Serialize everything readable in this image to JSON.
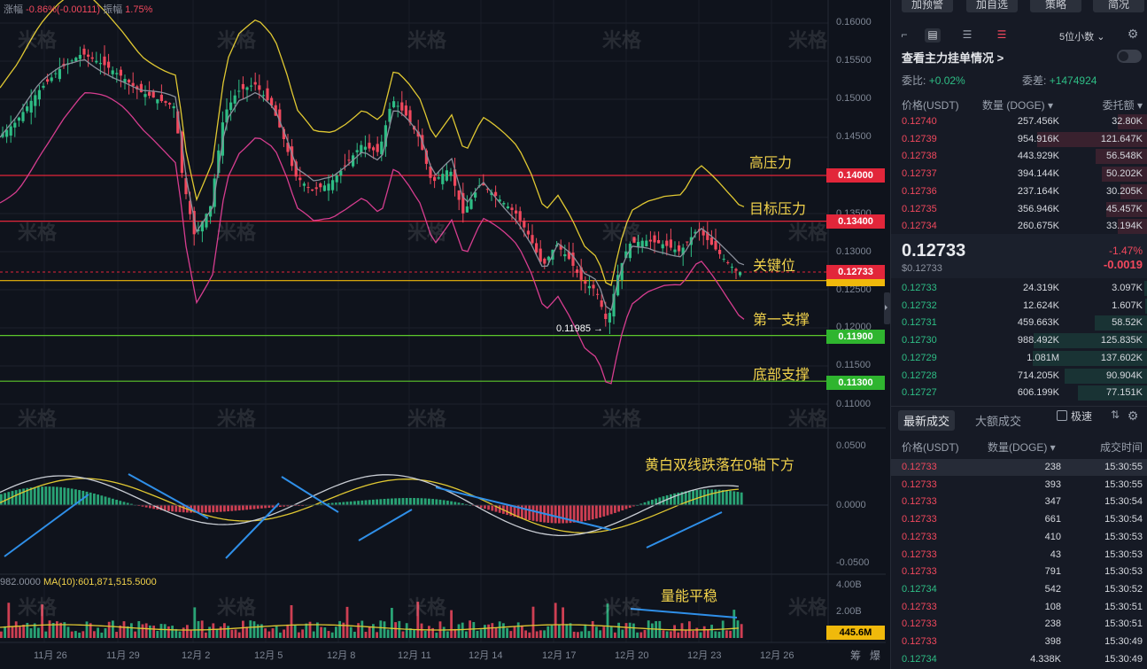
{
  "ticker": {
    "change_label": "涨幅",
    "change_value": "-0.86%(-0.00111)",
    "amp_label": "振幅",
    "amp_value": "1.75%"
  },
  "annotations": {
    "high_pressure": "高压力",
    "target_pressure": "目标压力",
    "key_level": "关键位",
    "first_support": "第一支撑",
    "bottom_support": "底部支撑",
    "macd_note": "黄白双线跌落在0轴下方",
    "volume_note": "量能平稳"
  },
  "levels": {
    "l1": "0.14000",
    "l2": "0.13400",
    "l3": "0.12733",
    "l4": "0.11900",
    "l5": "0.11300"
  },
  "price_axis": [
    "0.16000",
    "0.15500",
    "0.15000",
    "0.14500",
    "0.13500",
    "0.13000",
    "0.12500",
    "0.12000",
    "0.11500",
    "0.11000"
  ],
  "macd_axis": [
    "0.0500",
    "0.0000",
    "-0.0500"
  ],
  "vol_axis": [
    "4.00B",
    "2.00B"
  ],
  "vol_current": "445.6M",
  "low_label": "0.11985 →",
  "vol_ma": {
    "prefix": "982.0000",
    "ma": "MA(10):601,871,515.5000"
  },
  "x_axis": [
    "11月 26",
    "11月 29",
    "12月 2",
    "12月 5",
    "12月 8",
    "12月 11",
    "12月 14",
    "12月 17",
    "12月 20",
    "12月 23",
    "12月 26"
  ],
  "bottom_icons": {
    "a": "筹",
    "b": "爆"
  },
  "watermark": "米格",
  "colors": {
    "up": "#2ebd85",
    "down": "#f0485d",
    "yellow": "#f1d24b"
  },
  "panel": {
    "top_buttons": [
      "加预警",
      "加自选",
      "策略",
      "简况"
    ],
    "decimal": "5位小数",
    "main_force": "查看主力挂单情况 >",
    "ratio_label": "委比:",
    "ratio_value": "+0.02%",
    "diff_label": "委差:",
    "diff_value": "+1474924",
    "ob_headers": {
      "price": "价格(USDT)",
      "qty": "数量 (DOGE) ▾",
      "total": "委托额 ▾"
    },
    "asks": [
      {
        "p": "0.12740",
        "q": "257.456K",
        "t": "32.80K",
        "w": 0.26
      },
      {
        "p": "0.12739",
        "q": "954.916K",
        "t": "121.647K",
        "w": 0.96
      },
      {
        "p": "0.12738",
        "q": "443.929K",
        "t": "56.548K",
        "w": 0.45
      },
      {
        "p": "0.12737",
        "q": "394.144K",
        "t": "50.202K",
        "w": 0.4
      },
      {
        "p": "0.12736",
        "q": "237.164K",
        "t": "30.205K",
        "w": 0.24
      },
      {
        "p": "0.12735",
        "q": "356.946K",
        "t": "45.457K",
        "w": 0.36
      },
      {
        "p": "0.12734",
        "q": "260.675K",
        "t": "33.194K",
        "w": 0.26
      }
    ],
    "mid": {
      "price": "0.12733",
      "usd": "$0.12733",
      "pct": "-1.47%",
      "chg": "-0.0019"
    },
    "bids": [
      {
        "p": "0.12733",
        "q": "24.319K",
        "t": "3.097K",
        "w": 0.03
      },
      {
        "p": "0.12732",
        "q": "12.624K",
        "t": "1.607K",
        "w": 0.02
      },
      {
        "p": "0.12731",
        "q": "459.663K",
        "t": "58.52K",
        "w": 0.46
      },
      {
        "p": "0.12730",
        "q": "988.492K",
        "t": "125.835K",
        "w": 0.99
      },
      {
        "p": "0.12729",
        "q": "1.081M",
        "t": "137.602K",
        "w": 1.0
      },
      {
        "p": "0.12728",
        "q": "714.205K",
        "t": "90.904K",
        "w": 0.72
      },
      {
        "p": "0.12727",
        "q": "606.199K",
        "t": "77.151K",
        "w": 0.61
      }
    ],
    "tabs": {
      "latest": "最新成交",
      "large": "大额成交",
      "fast": "极速"
    },
    "tr_headers": {
      "price": "价格(USDT)",
      "qty": "数量(DOGE) ▾",
      "time": "成交时间"
    },
    "trades": [
      {
        "p": "0.12733",
        "q": "238",
        "tm": "15:30:55",
        "s": "sell"
      },
      {
        "p": "0.12733",
        "q": "393",
        "tm": "15:30:55",
        "s": "sell"
      },
      {
        "p": "0.12733",
        "q": "347",
        "tm": "15:30:54",
        "s": "sell"
      },
      {
        "p": "0.12733",
        "q": "661",
        "tm": "15:30:54",
        "s": "sell"
      },
      {
        "p": "0.12733",
        "q": "410",
        "tm": "15:30:53",
        "s": "sell"
      },
      {
        "p": "0.12733",
        "q": "43",
        "tm": "15:30:53",
        "s": "sell"
      },
      {
        "p": "0.12733",
        "q": "791",
        "tm": "15:30:53",
        "s": "sell"
      },
      {
        "p": "0.12734",
        "q": "542",
        "tm": "15:30:52",
        "s": "buy"
      },
      {
        "p": "0.12733",
        "q": "108",
        "tm": "15:30:51",
        "s": "sell"
      },
      {
        "p": "0.12733",
        "q": "238",
        "tm": "15:30:51",
        "s": "sell"
      },
      {
        "p": "0.12733",
        "q": "398",
        "tm": "15:30:49",
        "s": "sell"
      },
      {
        "p": "0.12734",
        "q": "4.338K",
        "tm": "15:30:49",
        "s": "buy"
      }
    ]
  }
}
